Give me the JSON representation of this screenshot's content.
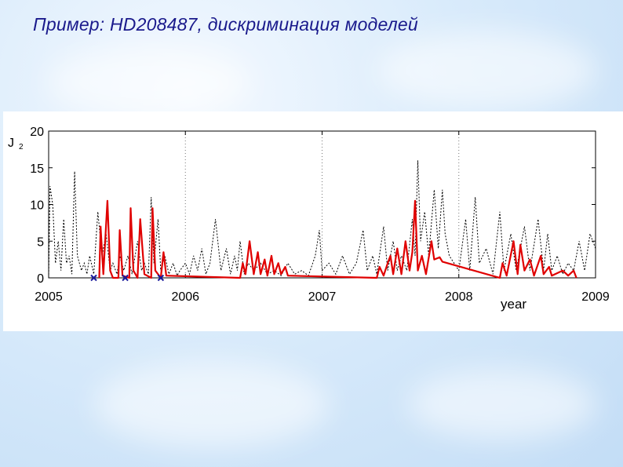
{
  "slide": {
    "title": "Пример: HD208487, дискриминация моделей"
  },
  "colors": {
    "title": "#1a1a8c",
    "dotted_series": "#000000",
    "red_series": "#e00000",
    "markers": "#1a1a9c"
  },
  "chart_data": {
    "type": "line",
    "title": "",
    "ylabel": "J",
    "ylabel_subscript": "2",
    "xlabel": "year",
    "xlim": [
      2005,
      2009
    ],
    "ylim": [
      0,
      20
    ],
    "xticks": [
      2005,
      2006,
      2007,
      2008,
      2009
    ],
    "yticks": [
      0,
      5,
      10,
      15,
      20
    ],
    "grid": "vertical dotted at yearly ticks",
    "series": [
      {
        "style": "black dotted",
        "points": [
          [
            2005.0,
            0
          ],
          [
            2005.01,
            12.5
          ],
          [
            2005.03,
            10
          ],
          [
            2005.05,
            2
          ],
          [
            2005.07,
            5
          ],
          [
            2005.09,
            1
          ],
          [
            2005.11,
            8
          ],
          [
            2005.13,
            2
          ],
          [
            2005.15,
            3
          ],
          [
            2005.17,
            0.5
          ],
          [
            2005.19,
            14.5
          ],
          [
            2005.21,
            3
          ],
          [
            2005.24,
            1
          ],
          [
            2005.26,
            2
          ],
          [
            2005.28,
            0.5
          ],
          [
            2005.3,
            3
          ],
          [
            2005.33,
            0.5
          ],
          [
            2005.36,
            9
          ],
          [
            2005.39,
            3
          ],
          [
            2005.42,
            6
          ],
          [
            2005.45,
            1
          ],
          [
            2005.47,
            2
          ],
          [
            2005.5,
            0.5
          ],
          [
            2005.52,
            3
          ],
          [
            2005.55,
            1
          ],
          [
            2005.58,
            3
          ],
          [
            2005.61,
            0.5
          ],
          [
            2005.65,
            5
          ],
          [
            2005.68,
            1
          ],
          [
            2005.7,
            2
          ],
          [
            2005.73,
            0.5
          ],
          [
            2005.75,
            11
          ],
          [
            2005.77,
            2
          ],
          [
            2005.8,
            8
          ],
          [
            2005.82,
            1
          ],
          [
            2005.85,
            3
          ],
          [
            2005.88,
            0.5
          ],
          [
            2005.91,
            2
          ],
          [
            2005.94,
            0.3
          ],
          [
            2005.96,
            1
          ],
          [
            2006.0,
            2
          ],
          [
            2006.03,
            0.5
          ],
          [
            2006.06,
            3
          ],
          [
            2006.09,
            1
          ],
          [
            2006.12,
            4
          ],
          [
            2006.15,
            0.5
          ],
          [
            2006.18,
            2
          ],
          [
            2006.22,
            8
          ],
          [
            2006.26,
            1
          ],
          [
            2006.3,
            4
          ],
          [
            2006.33,
            0.5
          ],
          [
            2006.36,
            3
          ],
          [
            2006.38,
            1
          ],
          [
            2006.4,
            5
          ],
          [
            2006.43,
            0.5
          ],
          [
            2006.46,
            2
          ],
          [
            2006.5,
            1
          ],
          [
            2006.55,
            2
          ],
          [
            2006.6,
            0.5
          ],
          [
            2006.65,
            1
          ],
          [
            2006.7,
            0.3
          ],
          [
            2006.75,
            2
          ],
          [
            2006.8,
            0.5
          ],
          [
            2006.85,
            1
          ],
          [
            2006.9,
            0.3
          ],
          [
            2006.95,
            3
          ],
          [
            2006.98,
            6.5
          ],
          [
            2007.0,
            1
          ],
          [
            2007.05,
            2
          ],
          [
            2007.1,
            0.5
          ],
          [
            2007.15,
            3
          ],
          [
            2007.2,
            0.5
          ],
          [
            2007.25,
            2
          ],
          [
            2007.3,
            6.5
          ],
          [
            2007.33,
            1
          ],
          [
            2007.37,
            3
          ],
          [
            2007.4,
            0.5
          ],
          [
            2007.45,
            7
          ],
          [
            2007.48,
            1
          ],
          [
            2007.52,
            5
          ],
          [
            2007.55,
            1
          ],
          [
            2007.58,
            3
          ],
          [
            2007.62,
            1
          ],
          [
            2007.66,
            8
          ],
          [
            2007.68,
            3
          ],
          [
            2007.7,
            16
          ],
          [
            2007.72,
            5
          ],
          [
            2007.75,
            9
          ],
          [
            2007.78,
            3
          ],
          [
            2007.82,
            12
          ],
          [
            2007.85,
            4
          ],
          [
            2007.88,
            12
          ],
          [
            2007.9,
            6
          ],
          [
            2007.93,
            3
          ],
          [
            2008.0,
            1
          ],
          [
            2008.05,
            8
          ],
          [
            2008.08,
            1
          ],
          [
            2008.12,
            11
          ],
          [
            2008.15,
            2
          ],
          [
            2008.2,
            4
          ],
          [
            2008.25,
            0.5
          ],
          [
            2008.3,
            9
          ],
          [
            2008.33,
            1
          ],
          [
            2008.38,
            6
          ],
          [
            2008.42,
            1
          ],
          [
            2008.48,
            7
          ],
          [
            2008.52,
            1
          ],
          [
            2008.58,
            8
          ],
          [
            2008.62,
            1
          ],
          [
            2008.65,
            6
          ],
          [
            2008.68,
            1
          ],
          [
            2008.72,
            3
          ],
          [
            2008.76,
            0.5
          ],
          [
            2008.8,
            2
          ],
          [
            2008.84,
            1
          ],
          [
            2008.88,
            5
          ],
          [
            2008.92,
            1
          ],
          [
            2008.96,
            6
          ],
          [
            2009.0,
            4
          ]
        ]
      },
      {
        "style": "red solid",
        "points": [
          [
            2005.37,
            0
          ],
          [
            2005.38,
            7
          ],
          [
            2005.4,
            0.5
          ],
          [
            2005.43,
            10.5
          ],
          [
            2005.45,
            1
          ],
          [
            2005.47,
            0
          ],
          [
            2005.51,
            0
          ],
          [
            2005.52,
            6.5
          ],
          [
            2005.54,
            0.3
          ],
          [
            2005.59,
            0
          ],
          [
            2005.6,
            9.5
          ],
          [
            2005.62,
            1
          ],
          [
            2005.65,
            0
          ],
          [
            2005.67,
            8
          ],
          [
            2005.7,
            0.5
          ],
          [
            2005.75,
            0
          ],
          [
            2005.76,
            9.5
          ],
          [
            2005.78,
            1
          ],
          [
            2005.82,
            0
          ],
          [
            2005.84,
            3.5
          ],
          [
            2005.86,
            0.3
          ],
          [
            2006.4,
            0
          ],
          [
            2006.42,
            2
          ],
          [
            2006.44,
            0.5
          ],
          [
            2006.47,
            5
          ],
          [
            2006.5,
            0.5
          ],
          [
            2006.53,
            3.5
          ],
          [
            2006.55,
            0.5
          ],
          [
            2006.58,
            2.5
          ],
          [
            2006.6,
            0.3
          ],
          [
            2006.63,
            3
          ],
          [
            2006.65,
            0.5
          ],
          [
            2006.68,
            2
          ],
          [
            2006.7,
            0.5
          ],
          [
            2006.73,
            1.5
          ],
          [
            2006.75,
            0.3
          ],
          [
            2007.4,
            0
          ],
          [
            2007.42,
            1.5
          ],
          [
            2007.45,
            0.3
          ],
          [
            2007.48,
            2
          ],
          [
            2007.5,
            3
          ],
          [
            2007.52,
            0.5
          ],
          [
            2007.55,
            4
          ],
          [
            2007.58,
            0.5
          ],
          [
            2007.61,
            5
          ],
          [
            2007.64,
            1
          ],
          [
            2007.66,
            3.5
          ],
          [
            2007.68,
            10.5
          ],
          [
            2007.7,
            1
          ],
          [
            2007.73,
            3
          ],
          [
            2007.76,
            0.5
          ],
          [
            2007.8,
            5
          ],
          [
            2007.82,
            2.5
          ],
          [
            2007.86,
            2.8
          ],
          [
            2007.88,
            2.2
          ],
          [
            2008.3,
            0
          ],
          [
            2008.32,
            2
          ],
          [
            2008.35,
            0.3
          ],
          [
            2008.4,
            5
          ],
          [
            2008.43,
            0.5
          ],
          [
            2008.45,
            4.5
          ],
          [
            2008.48,
            1
          ],
          [
            2008.52,
            2.5
          ],
          [
            2008.55,
            0.3
          ],
          [
            2008.6,
            3
          ],
          [
            2008.62,
            0.5
          ],
          [
            2008.66,
            1.5
          ],
          [
            2008.68,
            0.3
          ],
          [
            2008.76,
            1
          ],
          [
            2008.8,
            0.3
          ],
          [
            2008.84,
            1
          ],
          [
            2008.86,
            0
          ]
        ]
      }
    ],
    "markers": {
      "symbol": "x",
      "x": [
        2005.33,
        2005.56,
        2005.82
      ],
      "y": 0
    }
  }
}
